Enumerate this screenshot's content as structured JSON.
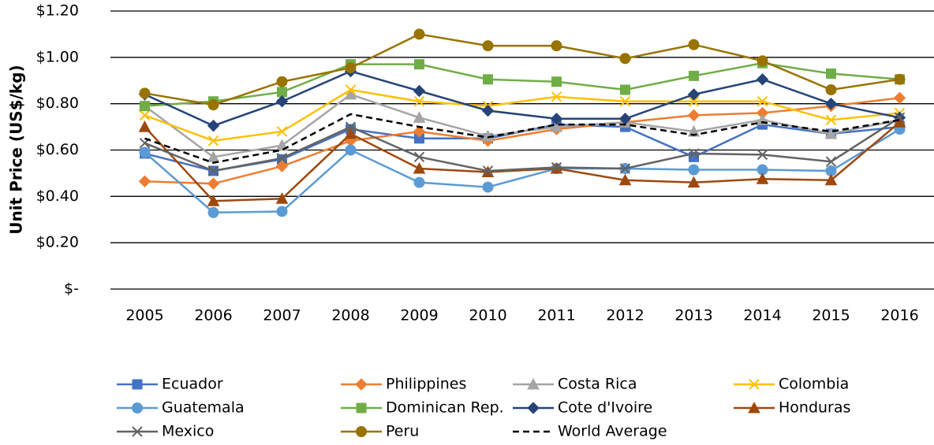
{
  "chart_data": {
    "type": "line",
    "y_label": "Unit Price (US$/kg)",
    "categories": [
      "2005",
      "2006",
      "2007",
      "2008",
      "2009",
      "2010",
      "2011",
      "2012",
      "2013",
      "2014",
      "2015",
      "2016"
    ],
    "ylim": [
      0,
      1.2
    ],
    "yticks": [
      {
        "value": 0,
        "label": "$-"
      },
      {
        "value": 0.2,
        "label": "$0.20"
      },
      {
        "value": 0.4,
        "label": "$0.40"
      },
      {
        "value": 0.6,
        "label": "$0.60"
      },
      {
        "value": 0.8,
        "label": "$0.80"
      },
      {
        "value": 1,
        "label": "$1.00"
      },
      {
        "value": 1.2,
        "label": "$1.20"
      }
    ],
    "grid": true,
    "legend": "bottom",
    "series": [
      {
        "name": "Ecuador",
        "color": "#4472c4",
        "marker": "square",
        "values": [
          0.585,
          0.51,
          0.56,
          0.69,
          0.65,
          0.65,
          0.71,
          0.7,
          0.57,
          0.71,
          0.67,
          0.7
        ]
      },
      {
        "name": "Philippines",
        "color": "#ed7d31",
        "marker": "diamond",
        "values": [
          0.465,
          0.455,
          0.53,
          0.64,
          0.68,
          0.64,
          0.69,
          0.72,
          0.75,
          0.76,
          0.79,
          0.825
        ]
      },
      {
        "name": "Costa Rica",
        "color": "#a5a5a5",
        "marker": "triangle",
        "values": [
          0.79,
          0.57,
          0.62,
          0.84,
          0.74,
          0.66,
          0.7,
          0.72,
          0.68,
          0.73,
          0.67,
          0.73
        ]
      },
      {
        "name": "Colombia",
        "color": "#ffc000",
        "marker": "x",
        "values": [
          0.75,
          0.64,
          0.68,
          0.86,
          0.81,
          0.79,
          0.83,
          0.81,
          0.81,
          0.81,
          0.73,
          0.76
        ]
      },
      {
        "name": "Guatemala",
        "color": "#5b9bd5",
        "marker": "circle",
        "values": [
          0.59,
          0.33,
          0.335,
          0.6,
          0.46,
          0.44,
          0.52,
          0.52,
          0.515,
          0.515,
          0.51,
          0.69
        ]
      },
      {
        "name": "Dominican Rep.",
        "color": "#70ad47",
        "marker": "square",
        "values": [
          0.79,
          0.81,
          0.85,
          0.97,
          0.97,
          0.905,
          0.895,
          0.86,
          0.92,
          0.975,
          0.93,
          0.905
        ]
      },
      {
        "name": "Cote d'Ivoire",
        "color": "#264478",
        "marker": "diamond",
        "values": [
          0.84,
          0.705,
          0.81,
          0.94,
          0.855,
          0.77,
          0.735,
          0.735,
          0.84,
          0.905,
          0.8,
          0.74
        ]
      },
      {
        "name": "Honduras",
        "color": "#9e480e",
        "marker": "triangle",
        "values": [
          0.7,
          0.38,
          0.39,
          0.67,
          0.52,
          0.505,
          0.52,
          0.47,
          0.46,
          0.475,
          0.47,
          0.72
        ]
      },
      {
        "name": "Mexico",
        "color": "#636363",
        "marker": "x",
        "values": [
          0.63,
          0.51,
          0.565,
          0.7,
          0.57,
          0.51,
          0.525,
          0.52,
          0.585,
          0.58,
          0.55,
          0.74
        ]
      },
      {
        "name": "Peru",
        "color": "#997300",
        "marker": "circle",
        "values": [
          0.845,
          0.795,
          0.895,
          0.955,
          1.1,
          1.05,
          1.05,
          0.995,
          1.055,
          0.985,
          0.86,
          0.905
        ]
      },
      {
        "name": "World Average",
        "color": "#000000",
        "marker": "none",
        "dash": true,
        "values": [
          0.65,
          0.545,
          0.6,
          0.755,
          0.7,
          0.655,
          0.71,
          0.71,
          0.665,
          0.72,
          0.68,
          0.73
        ]
      }
    ]
  }
}
